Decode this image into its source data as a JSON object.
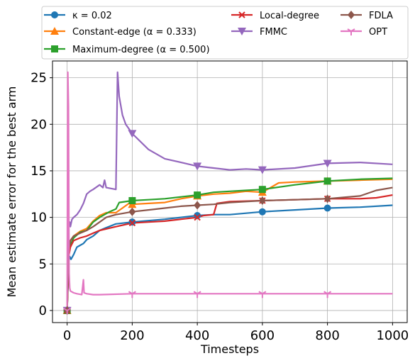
{
  "chart_data": {
    "type": "line",
    "xlabel": "Timesteps",
    "ylabel": "Mean estimate error for the best arm",
    "xlim": [
      -45,
      1045
    ],
    "ylim": [
      -1.3,
      26.8
    ],
    "xticks": [
      0,
      200,
      400,
      600,
      800,
      1000
    ],
    "yticks": [
      0,
      5,
      10,
      15,
      20,
      25
    ],
    "grid": true,
    "legend_position": "top, outside plot",
    "series": [
      {
        "name": "κ = 0.02",
        "color": "#1f77b4",
        "marker": "circle",
        "markers_at": [
          0,
          200,
          400,
          600,
          800
        ],
        "x": [
          0,
          5,
          8,
          12,
          20,
          30,
          40,
          50,
          60,
          80,
          100,
          120,
          150,
          200,
          300,
          400,
          450,
          500,
          600,
          700,
          800,
          900,
          1000
        ],
        "y": [
          0,
          5.2,
          5.8,
          5.5,
          6.0,
          6.8,
          7.0,
          7.2,
          7.6,
          8.0,
          8.6,
          8.9,
          9.3,
          9.5,
          9.8,
          10.2,
          10.3,
          10.3,
          10.6,
          10.8,
          11.0,
          11.1,
          11.3
        ]
      },
      {
        "name": "Constant-edge (α = 0.333)",
        "color": "#ff7f0e",
        "marker": "triangle-up",
        "markers_at": [
          0,
          200,
          400,
          600,
          800
        ],
        "x": [
          0,
          5,
          10,
          20,
          40,
          60,
          80,
          100,
          120,
          150,
          190,
          200,
          250,
          300,
          350,
          400,
          450,
          500,
          550,
          600,
          650,
          700,
          800,
          900,
          1000
        ],
        "y": [
          0,
          6.5,
          7.5,
          8.0,
          8.5,
          8.8,
          9.6,
          10.2,
          10.5,
          10.5,
          11.5,
          11.4,
          11.5,
          11.6,
          12.0,
          12.3,
          12.5,
          12.6,
          12.8,
          12.7,
          13.7,
          13.8,
          13.9,
          14.0,
          14.1
        ]
      },
      {
        "name": "Maximum-degree (α = 0.500)",
        "color": "#2ca02c",
        "marker": "square",
        "markers_at": [
          0,
          200,
          400,
          600,
          800
        ],
        "x": [
          0,
          5,
          10,
          20,
          40,
          60,
          80,
          100,
          130,
          150,
          160,
          200,
          250,
          300,
          350,
          400,
          450,
          500,
          550,
          600,
          700,
          800,
          900,
          1000
        ],
        "y": [
          0,
          6.0,
          7.0,
          7.8,
          8.4,
          8.6,
          9.5,
          10.0,
          10.6,
          10.9,
          11.6,
          11.8,
          11.9,
          12.0,
          12.2,
          12.4,
          12.7,
          12.8,
          12.9,
          13.0,
          13.5,
          13.9,
          14.1,
          14.2
        ]
      },
      {
        "name": "Local-degree",
        "color": "#d62728",
        "marker": "x",
        "markers_at": [
          0,
          200,
          400,
          600,
          800
        ],
        "x": [
          0,
          5,
          10,
          20,
          40,
          60,
          80,
          100,
          150,
          200,
          250,
          300,
          350,
          400,
          420,
          450,
          460,
          500,
          600,
          700,
          800,
          900,
          950,
          1000
        ],
        "y": [
          0,
          5.8,
          6.8,
          7.5,
          7.8,
          8.0,
          8.3,
          8.6,
          9.0,
          9.4,
          9.5,
          9.6,
          9.8,
          10.0,
          10.2,
          10.3,
          11.5,
          11.7,
          11.8,
          11.9,
          12.0,
          12.0,
          12.1,
          12.4
        ]
      },
      {
        "name": "FMMC",
        "color": "#9467bd",
        "marker": "triangle-down",
        "markers_at": [
          0,
          200,
          400,
          600,
          800
        ],
        "x": [
          0,
          3,
          5,
          8,
          10,
          15,
          20,
          30,
          40,
          50,
          60,
          70,
          80,
          100,
          110,
          115,
          120,
          150,
          155,
          160,
          170,
          180,
          200,
          250,
          300,
          350,
          400,
          450,
          500,
          550,
          600,
          700,
          800,
          900,
          1000
        ],
        "y": [
          0,
          8.5,
          9.0,
          9.5,
          9.0,
          9.8,
          10.0,
          10.3,
          10.8,
          11.5,
          12.5,
          12.8,
          13.0,
          13.5,
          13.2,
          14.0,
          13.2,
          13.0,
          25.6,
          23.0,
          21.0,
          20.0,
          19.0,
          17.3,
          16.3,
          15.9,
          15.5,
          15.3,
          15.1,
          15.2,
          15.1,
          15.3,
          15.8,
          15.9,
          15.7
        ]
      },
      {
        "name": "FDLA",
        "color": "#8c564b",
        "marker": "diamond",
        "markers_at": [
          0,
          200,
          400,
          600,
          800
        ],
        "x": [
          0,
          5,
          10,
          20,
          40,
          60,
          80,
          100,
          120,
          150,
          200,
          250,
          300,
          350,
          400,
          450,
          500,
          550,
          600,
          700,
          800,
          900,
          950,
          1000
        ],
        "y": [
          0,
          6.5,
          7.5,
          8.0,
          8.3,
          8.6,
          9.0,
          9.5,
          10.0,
          10.3,
          10.6,
          10.8,
          11.0,
          11.2,
          11.3,
          11.4,
          11.6,
          11.7,
          11.8,
          11.9,
          12.0,
          12.3,
          12.9,
          13.2
        ]
      },
      {
        "name": "OPT",
        "color": "#e377c2",
        "marker": "tri-down",
        "markers_at": [
          0,
          200,
          400,
          600,
          800
        ],
        "x": [
          0,
          2,
          4,
          6,
          8,
          10,
          20,
          30,
          45,
          50,
          52,
          60,
          80,
          100,
          200,
          400,
          600,
          800,
          1000
        ],
        "y": [
          0,
          25.6,
          22.0,
          4.0,
          2.4,
          2.1,
          1.9,
          1.8,
          1.7,
          3.3,
          1.9,
          1.8,
          1.7,
          1.7,
          1.8,
          1.8,
          1.8,
          1.8,
          1.8
        ]
      }
    ]
  }
}
